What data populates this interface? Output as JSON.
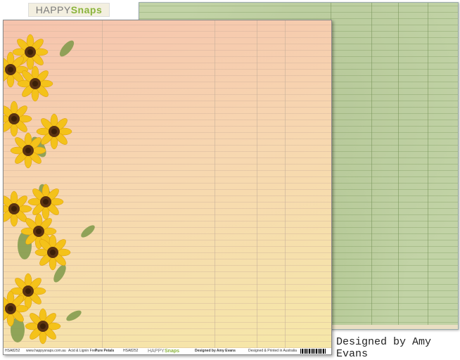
{
  "header": {
    "logo_happy": "HAPPY",
    "logo_snaps": "Snaps"
  },
  "front_sheet": {
    "footer": {
      "code_left": "HSA8252",
      "website": "www.happysnaps.com.au",
      "acid_free": "Acid & Lignin Free",
      "collection": "Pure Petals",
      "code": "HSA8252",
      "brand_happy": "HAPPY",
      "brand_snaps": "Snaps",
      "designer": "Designed by Amy Evans",
      "origin": "Designed & Printed in Australia"
    }
  },
  "caption": "Designed by Amy Evans"
}
